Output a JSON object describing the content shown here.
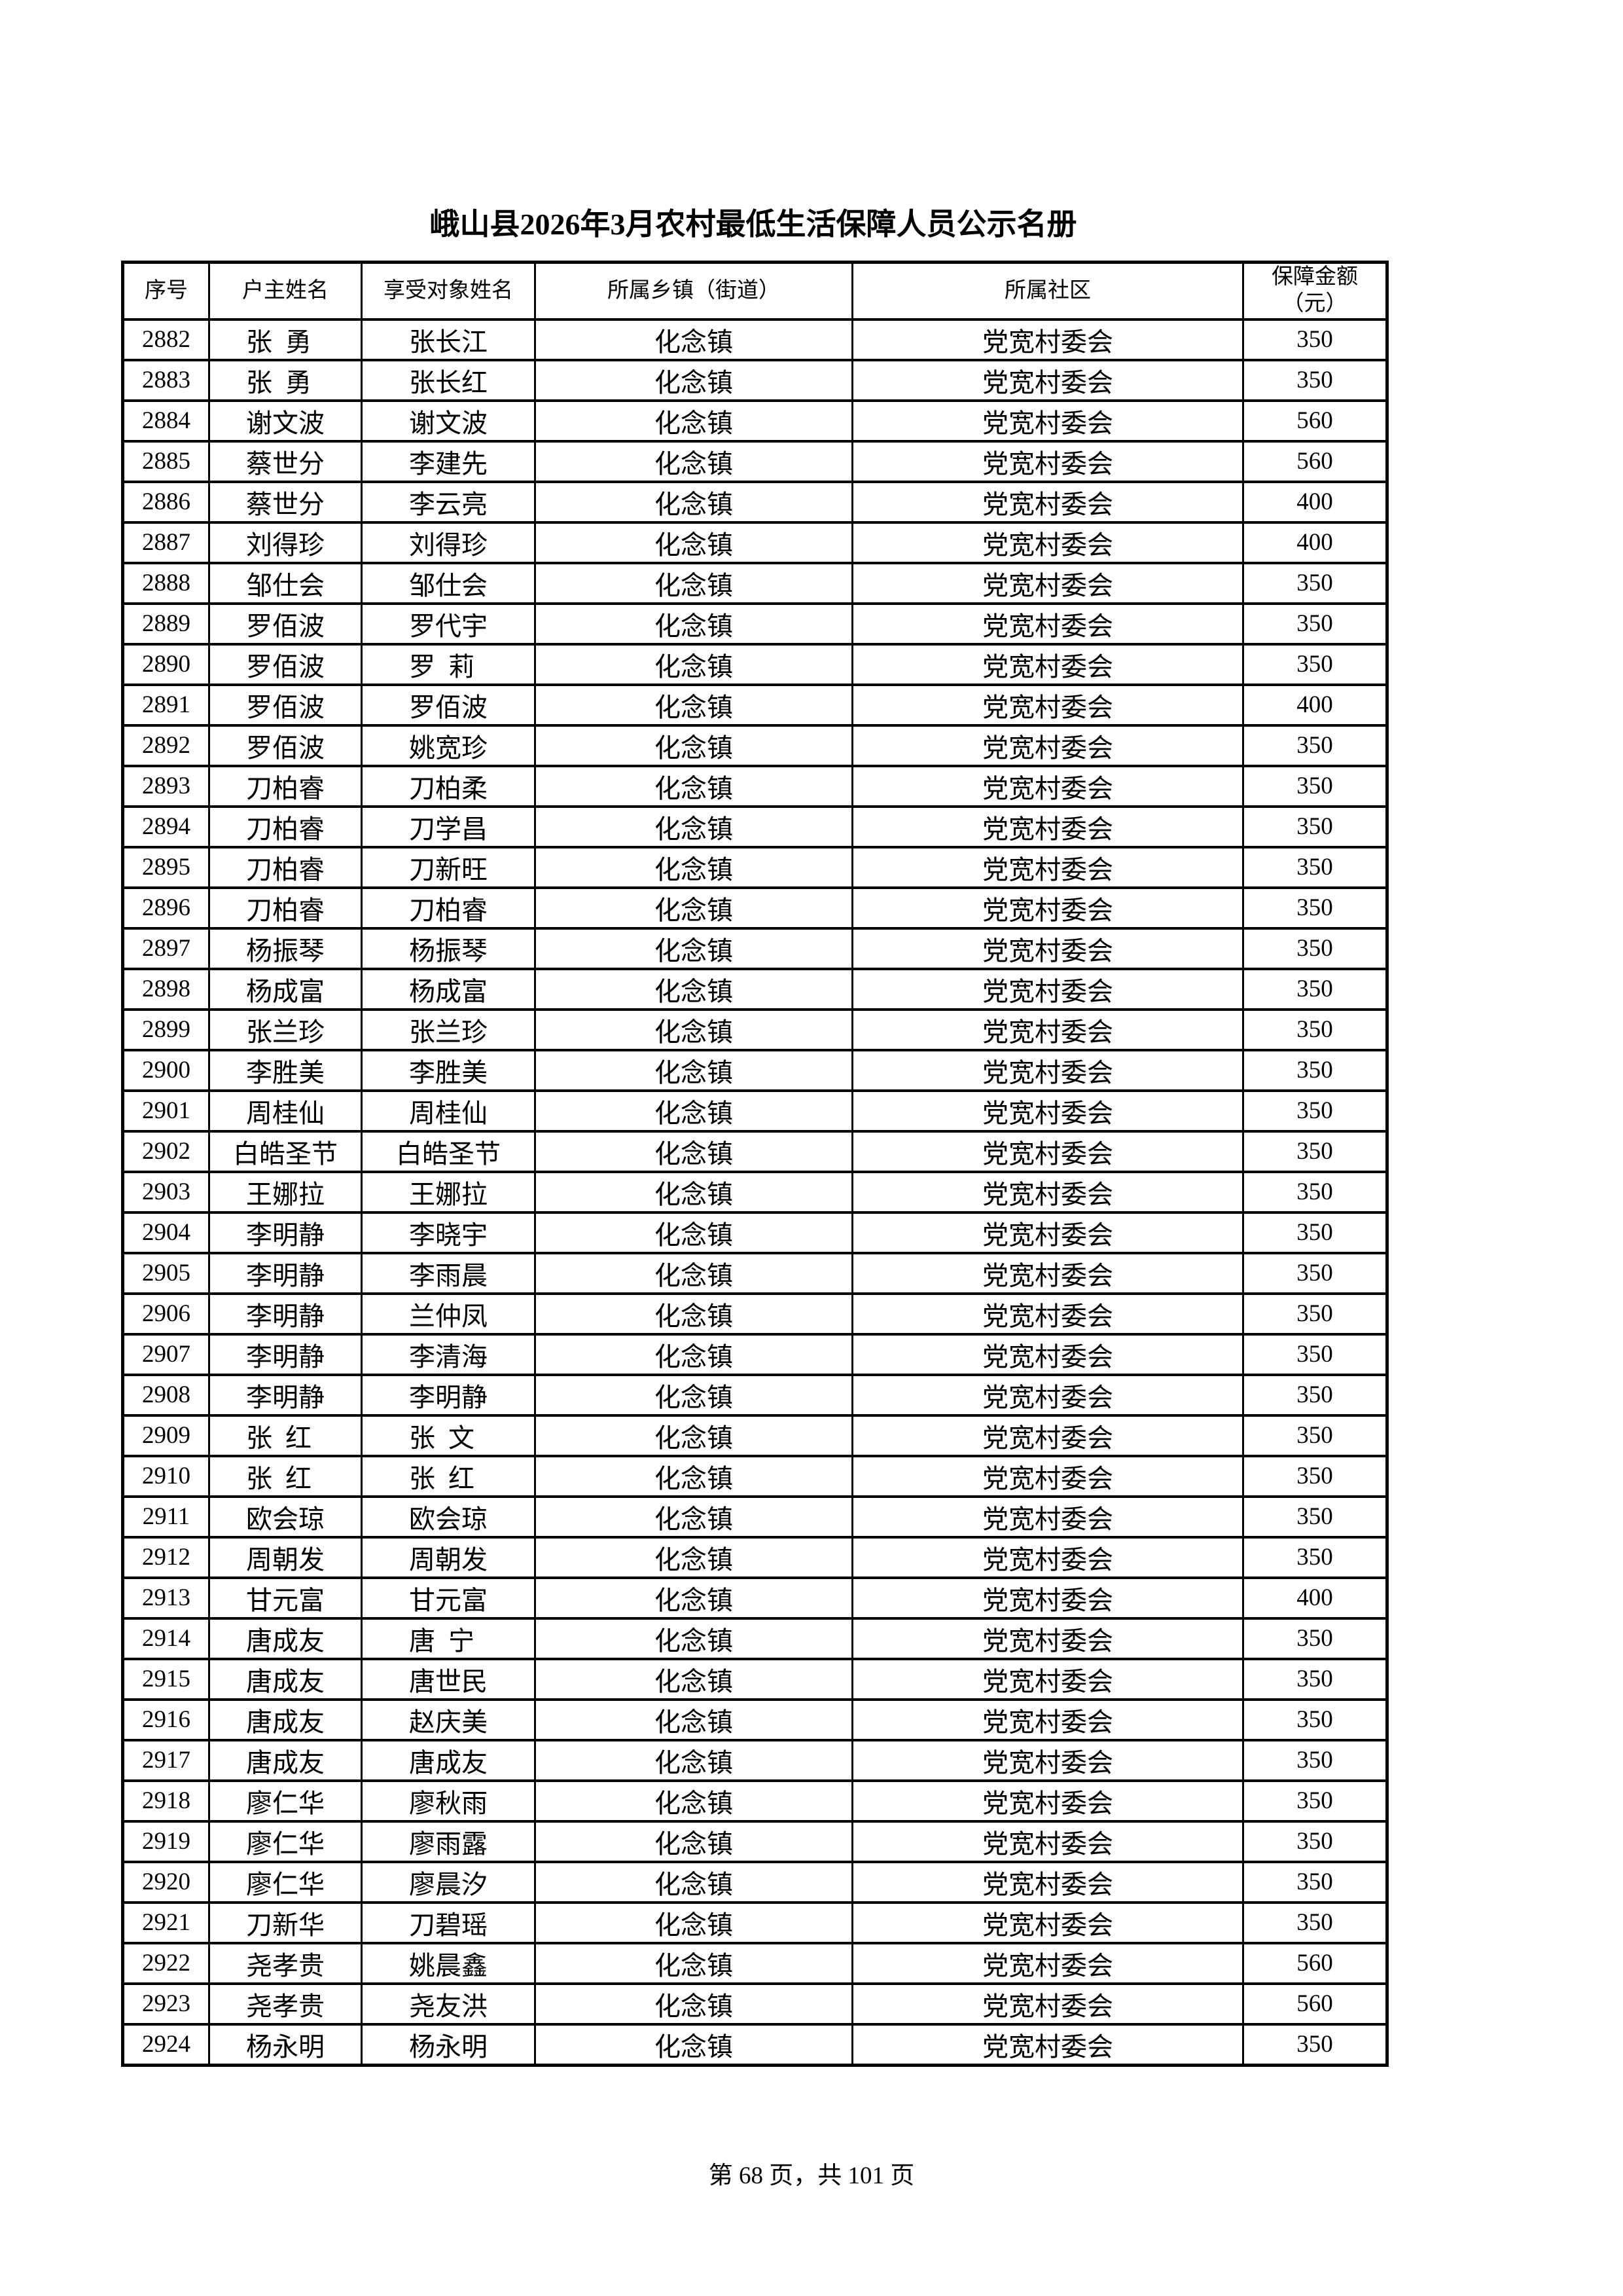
{
  "colors": {
    "ink": "#000000",
    "paper": "#ffffff"
  },
  "page": {
    "title": "峨山县2026年3月农村最低生活保障人员公示名册",
    "footer": "第 68 页，共 101 页"
  },
  "table": {
    "headers": [
      "序号",
      "户主姓名",
      "享受对象姓名",
      "所属乡镇（街道）",
      "所属社区",
      "保障金额（元）"
    ],
    "rows": [
      [
        "2882",
        "张勇",
        "张长江",
        "化念镇",
        "党宽村委会",
        "350"
      ],
      [
        "2883",
        "张勇",
        "张长红",
        "化念镇",
        "党宽村委会",
        "350"
      ],
      [
        "2884",
        "谢文波",
        "谢文波",
        "化念镇",
        "党宽村委会",
        "560"
      ],
      [
        "2885",
        "蔡世分",
        "李建先",
        "化念镇",
        "党宽村委会",
        "560"
      ],
      [
        "2886",
        "蔡世分",
        "李云亮",
        "化念镇",
        "党宽村委会",
        "400"
      ],
      [
        "2887",
        "刘得珍",
        "刘得珍",
        "化念镇",
        "党宽村委会",
        "400"
      ],
      [
        "2888",
        "邹仕会",
        "邹仕会",
        "化念镇",
        "党宽村委会",
        "350"
      ],
      [
        "2889",
        "罗佰波",
        "罗代宇",
        "化念镇",
        "党宽村委会",
        "350"
      ],
      [
        "2890",
        "罗佰波",
        "罗莉",
        "化念镇",
        "党宽村委会",
        "350"
      ],
      [
        "2891",
        "罗佰波",
        "罗佰波",
        "化念镇",
        "党宽村委会",
        "400"
      ],
      [
        "2892",
        "罗佰波",
        "姚宽珍",
        "化念镇",
        "党宽村委会",
        "350"
      ],
      [
        "2893",
        "刀柏睿",
        "刀柏柔",
        "化念镇",
        "党宽村委会",
        "350"
      ],
      [
        "2894",
        "刀柏睿",
        "刀学昌",
        "化念镇",
        "党宽村委会",
        "350"
      ],
      [
        "2895",
        "刀柏睿",
        "刀新旺",
        "化念镇",
        "党宽村委会",
        "350"
      ],
      [
        "2896",
        "刀柏睿",
        "刀柏睿",
        "化念镇",
        "党宽村委会",
        "350"
      ],
      [
        "2897",
        "杨振琴",
        "杨振琴",
        "化念镇",
        "党宽村委会",
        "350"
      ],
      [
        "2898",
        "杨成富",
        "杨成富",
        "化念镇",
        "党宽村委会",
        "350"
      ],
      [
        "2899",
        "张兰珍",
        "张兰珍",
        "化念镇",
        "党宽村委会",
        "350"
      ],
      [
        "2900",
        "李胜美",
        "李胜美",
        "化念镇",
        "党宽村委会",
        "350"
      ],
      [
        "2901",
        "周桂仙",
        "周桂仙",
        "化念镇",
        "党宽村委会",
        "350"
      ],
      [
        "2902",
        "白皓圣节",
        "白皓圣节",
        "化念镇",
        "党宽村委会",
        "350"
      ],
      [
        "2903",
        "王娜拉",
        "王娜拉",
        "化念镇",
        "党宽村委会",
        "350"
      ],
      [
        "2904",
        "李明静",
        "李晓宇",
        "化念镇",
        "党宽村委会",
        "350"
      ],
      [
        "2905",
        "李明静",
        "李雨晨",
        "化念镇",
        "党宽村委会",
        "350"
      ],
      [
        "2906",
        "李明静",
        "兰仲凤",
        "化念镇",
        "党宽村委会",
        "350"
      ],
      [
        "2907",
        "李明静",
        "李清海",
        "化念镇",
        "党宽村委会",
        "350"
      ],
      [
        "2908",
        "李明静",
        "李明静",
        "化念镇",
        "党宽村委会",
        "350"
      ],
      [
        "2909",
        "张红",
        "张文",
        "化念镇",
        "党宽村委会",
        "350"
      ],
      [
        "2910",
        "张红",
        "张红",
        "化念镇",
        "党宽村委会",
        "350"
      ],
      [
        "2911",
        "欧会琼",
        "欧会琼",
        "化念镇",
        "党宽村委会",
        "350"
      ],
      [
        "2912",
        "周朝发",
        "周朝发",
        "化念镇",
        "党宽村委会",
        "350"
      ],
      [
        "2913",
        "甘元富",
        "甘元富",
        "化念镇",
        "党宽村委会",
        "400"
      ],
      [
        "2914",
        "唐成友",
        "唐宁",
        "化念镇",
        "党宽村委会",
        "350"
      ],
      [
        "2915",
        "唐成友",
        "唐世民",
        "化念镇",
        "党宽村委会",
        "350"
      ],
      [
        "2916",
        "唐成友",
        "赵庆美",
        "化念镇",
        "党宽村委会",
        "350"
      ],
      [
        "2917",
        "唐成友",
        "唐成友",
        "化念镇",
        "党宽村委会",
        "350"
      ],
      [
        "2918",
        "廖仁华",
        "廖秋雨",
        "化念镇",
        "党宽村委会",
        "350"
      ],
      [
        "2919",
        "廖仁华",
        "廖雨露",
        "化念镇",
        "党宽村委会",
        "350"
      ],
      [
        "2920",
        "廖仁华",
        "廖晨汐",
        "化念镇",
        "党宽村委会",
        "350"
      ],
      [
        "2921",
        "刀新华",
        "刀碧瑶",
        "化念镇",
        "党宽村委会",
        "350"
      ],
      [
        "2922",
        "尧孝贵",
        "姚晨鑫",
        "化念镇",
        "党宽村委会",
        "560"
      ],
      [
        "2923",
        "尧孝贵",
        "尧友洪",
        "化念镇",
        "党宽村委会",
        "560"
      ],
      [
        "2924",
        "杨永明",
        "杨永明",
        "化念镇",
        "党宽村委会",
        "350"
      ]
    ]
  }
}
